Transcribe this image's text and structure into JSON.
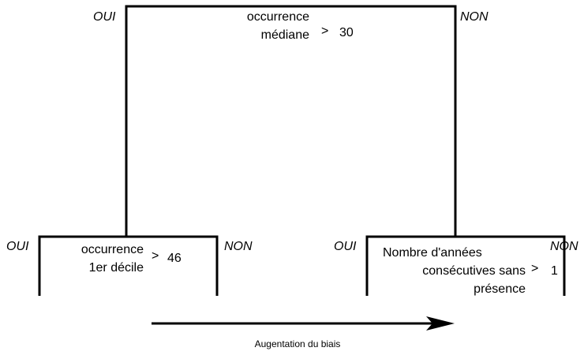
{
  "nodes": [
    {
      "label": [
        "occurrence",
        "médiane"
      ],
      "operator": ">",
      "threshold": 30,
      "yes": "OUI",
      "no": "NON"
    },
    {
      "label": [
        "occurrence",
        "1er décile"
      ],
      "operator": ">",
      "threshold": 46,
      "yes": "OUI",
      "no": "NON"
    },
    {
      "label": [
        "Nombre d'années",
        "consécutives sans",
        "présence"
      ],
      "operator": ">",
      "threshold": 1,
      "yes": "OUI",
      "no": "NON"
    }
  ],
  "arrow": {
    "label": "Augentation du biais"
  }
}
